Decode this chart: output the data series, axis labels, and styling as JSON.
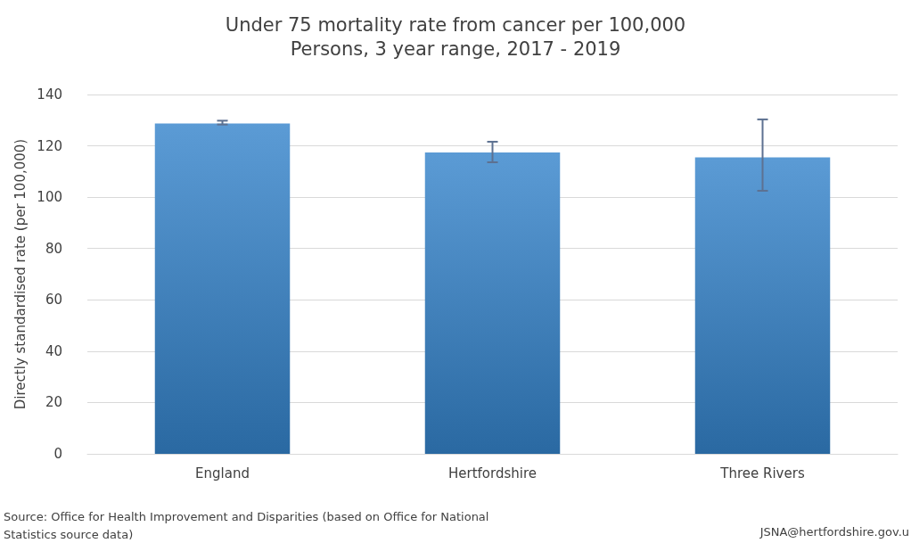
{
  "chart_data": {
    "type": "bar",
    "title": "Under 75 mortality rate from cancer per 100,000",
    "subtitle": "Persons, 3 year range, 2017 - 2019",
    "ylabel": "Directly standardised rate (per 100,000)",
    "categories": [
      "England",
      "Hertfordshire",
      "Three Rivers"
    ],
    "values": [
      128.7,
      117.4,
      115.5
    ],
    "color": "#5b9bd5",
    "errors": [
      [
        128.3,
        129.8
      ],
      [
        113.6,
        121.6
      ],
      [
        102.5,
        130.3
      ]
    ],
    "ylim": [
      0,
      140
    ],
    "yticks": [
      0,
      20,
      40,
      60,
      80,
      100,
      120,
      140
    ],
    "grid": "y",
    "annotations": [
      "Source: Office for Health Improvement and Disparities (based on Office for National Statistics source data)",
      "JSNA@hertfordshire.gov.u"
    ]
  }
}
